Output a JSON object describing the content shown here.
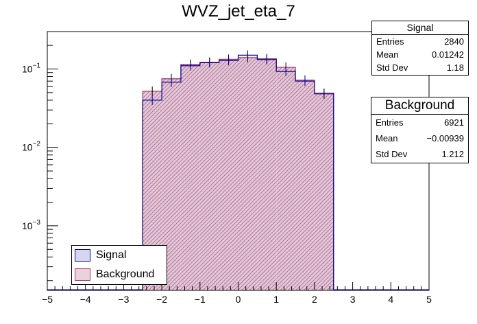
{
  "chart_data": {
    "type": "bar",
    "title": "WVZ_jet_eta_7",
    "xlabel": "",
    "ylabel": "",
    "xlim": [
      -5,
      5
    ],
    "ylim": [
      0.00015,
      0.3
    ],
    "log_y": true,
    "x_ticks": [
      "−5",
      "−4",
      "−3",
      "−2",
      "−1",
      "0",
      "1",
      "2",
      "3",
      "4",
      "5"
    ],
    "y_ticks": [
      {
        "base": "10",
        "exp": "−1",
        "value": 0.1
      },
      {
        "base": "10",
        "exp": "−2",
        "value": 0.01
      },
      {
        "base": "10",
        "exp": "−3",
        "value": 0.001
      }
    ],
    "bin_edges": [
      -2.5,
      -2.0,
      -1.5,
      -1.0,
      -0.5,
      0.0,
      0.5,
      1.0,
      1.5,
      2.0,
      2.5
    ],
    "series": [
      {
        "name": "Signal",
        "values": [
          0.04,
          0.068,
          0.11,
          0.12,
          0.128,
          0.15,
          0.132,
          0.093,
          0.07,
          0.049
        ],
        "color": "#000099",
        "fill": "#c8c8e8"
      },
      {
        "name": "Background",
        "values": [
          0.052,
          0.075,
          0.115,
          0.122,
          0.133,
          0.14,
          0.135,
          0.105,
          0.072,
          0.048
        ],
        "color": "#a03060",
        "fill": "#e8c8d8"
      }
    ],
    "legend_position": "bottom-left",
    "grid": false
  },
  "stats": {
    "signal": {
      "title": "Signal",
      "entries_label": "Entries",
      "entries": "2840",
      "mean_label": "Mean",
      "mean": "0.01242",
      "std_label": "Std Dev",
      "std": "1.18"
    },
    "background": {
      "title": "Background",
      "entries_label": "Entries",
      "entries": "6921",
      "mean_label": "Mean",
      "mean": "−0.00939",
      "std_label": "Std Dev",
      "std": "1.212"
    }
  },
  "legend": {
    "signal": "Signal",
    "background": "Background"
  }
}
